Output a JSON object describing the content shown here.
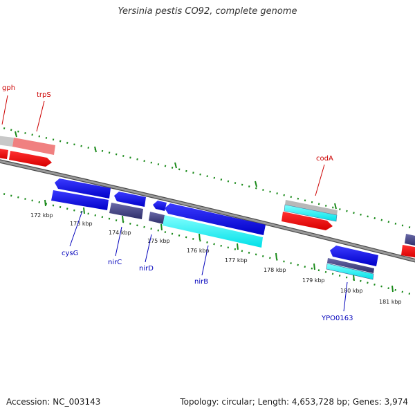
{
  "title": "Yersinia pestis CO92, complete genome",
  "footer": {
    "accession": "Accession: NC_003143",
    "topology": "Topology: circular; Length: 4,653,728 bp; Genes: 3,974"
  },
  "colors": {
    "forward_gene": "#ff0000",
    "reverse_gene": "#0000ee",
    "forward_label": "#cc0000",
    "reverse_label": "#0000bb",
    "tick": "#1a8a1a",
    "backbone": "#8c8c8c",
    "cyan_feature": "#00ffff",
    "dark_feature": "#4a4a8a"
  },
  "scale": {
    "ticks": [
      {
        "label": "172 kbp"
      },
      {
        "label": "173 kbp"
      },
      {
        "label": "174 kbp"
      },
      {
        "label": "175 kbp"
      },
      {
        "label": "176 kbp"
      },
      {
        "label": "177 kbp"
      },
      {
        "label": "178 kbp"
      },
      {
        "label": "179 kbp"
      },
      {
        "label": "180 kbp"
      },
      {
        "label": "181 kbp"
      }
    ]
  },
  "genes": {
    "forward": [
      {
        "name": "gph"
      },
      {
        "name": "trpS"
      },
      {
        "name": "codA"
      }
    ],
    "reverse": [
      {
        "name": "cysG"
      },
      {
        "name": "nirC"
      },
      {
        "name": "nirD"
      },
      {
        "name": "nirB"
      },
      {
        "name": "YPO0163"
      }
    ]
  }
}
